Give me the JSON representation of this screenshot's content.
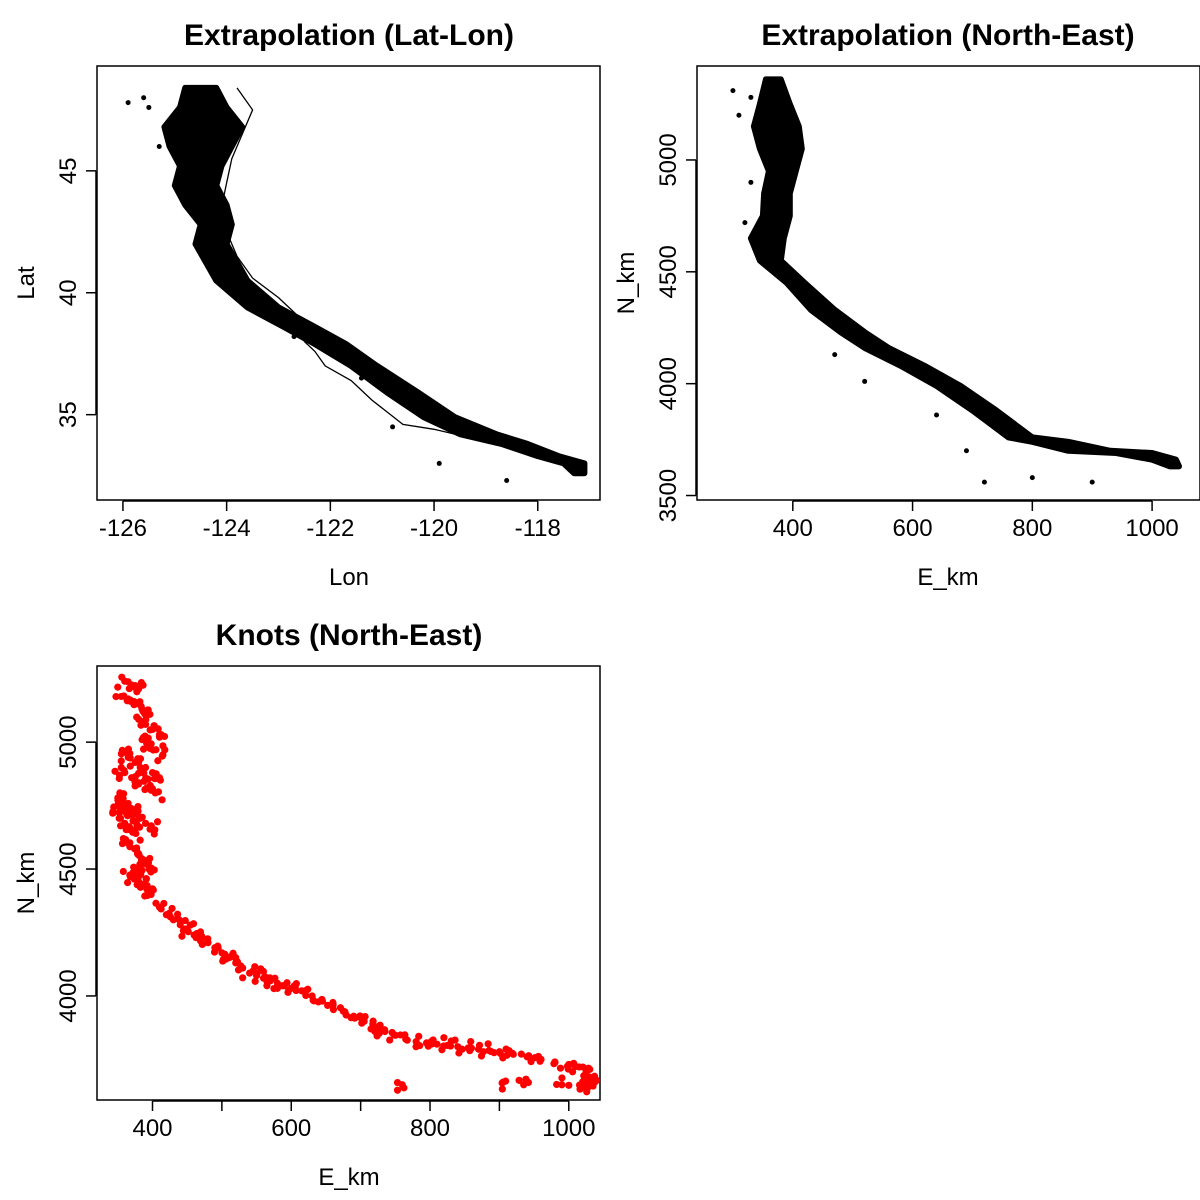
{
  "colors": {
    "extrapolation": "#000000",
    "knots": "#ff0000",
    "coastline": "#000000",
    "frame": "#000000"
  },
  "chart_data": [
    {
      "type": "scatter",
      "title": "Extrapolation (Lat-Lon)",
      "xlabel": "Lon",
      "ylabel": "Lat",
      "xlim": [
        -126.5,
        -116.8
      ],
      "ylim": [
        31.5,
        49.3
      ],
      "xticks": [
        -126,
        -124,
        -122,
        -120,
        -118
      ],
      "xtick_labels": [
        "-126",
        "-124",
        "-122",
        "-120",
        "-118"
      ],
      "yticks": [
        35,
        40,
        45
      ],
      "ytick_labels": [
        "35",
        "40",
        "45"
      ],
      "grid": false,
      "series": [
        {
          "color": "#000000",
          "style": "filled-region",
          "region_lon_west": [
            -124.8,
            -124.9,
            -125.2,
            -125.1,
            -124.9,
            -125.0,
            -124.8,
            -124.5,
            -124.6,
            -124.2,
            -123.6,
            -122.9,
            -122.3,
            -121.6,
            -120.9,
            -120.2,
            -119.5,
            -118.7,
            -118.0,
            -117.5,
            -117.3
          ],
          "region_lon_east": [
            -124.2,
            -124.0,
            -123.7,
            -123.9,
            -124.1,
            -124.2,
            -124.0,
            -123.9,
            -124.0,
            -123.6,
            -123.0,
            -122.3,
            -121.7,
            -121.1,
            -120.3,
            -119.6,
            -118.8,
            -118.2,
            -117.6,
            -117.1,
            -117.1
          ],
          "region_lat": [
            48.4,
            47.6,
            46.8,
            46.0,
            45.2,
            44.4,
            43.6,
            42.8,
            42.0,
            40.5,
            39.4,
            38.6,
            37.9,
            37.0,
            35.9,
            34.9,
            34.2,
            33.8,
            33.3,
            33.0,
            32.6
          ],
          "specks_lon": [
            -125.6,
            -125.9,
            -125.5,
            -125.1,
            -125.3,
            -124.4,
            -124.9,
            -123.0,
            -122.7,
            -121.4,
            -120.8,
            -119.9,
            -118.6
          ],
          "specks_lat": [
            48.0,
            47.8,
            47.6,
            46.8,
            46.0,
            45.0,
            44.0,
            39.0,
            38.2,
            36.5,
            34.5,
            33.0,
            32.3
          ]
        },
        {
          "color": "#000000",
          "style": "line",
          "name": "",
          "lon": [
            -123.8,
            -123.5,
            -123.7,
            -123.9,
            -124.0,
            -124.1,
            -124.0,
            -123.8,
            -123.5,
            -123.0,
            -122.6,
            -122.5,
            -122.3,
            -122.1,
            -121.6,
            -121.2,
            -120.6,
            -120.0,
            -119.2,
            -118.4,
            -117.6,
            -117.1
          ],
          "lat": [
            48.4,
            47.5,
            46.5,
            45.5,
            44.5,
            43.5,
            42.5,
            41.5,
            40.6,
            39.8,
            39.0,
            38.0,
            37.6,
            37.0,
            36.4,
            35.6,
            34.6,
            34.4,
            34.0,
            33.7,
            33.3,
            32.6
          ]
        }
      ]
    },
    {
      "type": "scatter",
      "title": "Extrapolation (North-East)",
      "xlabel": "E_km",
      "ylabel": "N_km",
      "xlim": [
        240,
        1080
      ],
      "ylim": [
        3480,
        5420
      ],
      "xticks": [
        400,
        600,
        800,
        1000
      ],
      "xtick_labels": [
        "400",
        "600",
        "800",
        "1000"
      ],
      "yticks": [
        3500,
        4000,
        4500,
        5000
      ],
      "ytick_labels": [
        "3500",
        "4000",
        "4500",
        "5000"
      ],
      "grid": false,
      "series": [
        {
          "color": "#000000",
          "style": "filled-region",
          "E_west": [
            355,
            345,
            335,
            345,
            360,
            352,
            350,
            330,
            345,
            390,
            430,
            480,
            520,
            580,
            640,
            700,
            760,
            800,
            860,
            940,
            1000,
            1030
          ],
          "E_east": [
            380,
            395,
            410,
            415,
            405,
            395,
            395,
            385,
            380,
            420,
            470,
            520,
            560,
            620,
            680,
            740,
            800,
            860,
            930,
            1000,
            1040,
            1045
          ],
          "N": [
            5360,
            5250,
            5150,
            5050,
            4950,
            4850,
            4750,
            4650,
            4550,
            4450,
            4330,
            4230,
            4160,
            4080,
            3990,
            3880,
            3760,
            3740,
            3700,
            3690,
            3660,
            3630
          ],
          "specks_E": [
            300,
            330,
            310,
            350,
            330,
            320,
            340,
            470,
            520,
            640,
            690,
            720,
            800,
            900
          ],
          "specks_N": [
            5310,
            5280,
            5200,
            5100,
            4900,
            4720,
            4600,
            4130,
            4010,
            3860,
            3700,
            3560,
            3580,
            3560
          ]
        }
      ]
    },
    {
      "type": "scatter",
      "title": "Knots (North-East)",
      "xlabel": "E_km",
      "ylabel": "N_km",
      "xlim": [
        320,
        1045
      ],
      "ylim": [
        3590,
        5300
      ],
      "xticks": [
        400,
        600,
        800,
        1000
      ],
      "xtick_labels": [
        "400",
        "600",
        "800",
        "1000"
      ],
      "xminor_ticks": [
        500,
        700,
        900
      ],
      "yticks": [
        4000,
        4500,
        5000
      ],
      "ytick_labels": [
        "4000",
        "4500",
        "5000"
      ],
      "grid": false,
      "series": [
        {
          "color": "#ff0000",
          "style": "points",
          "E": [
            360,
            370,
            380,
            355,
            365,
            375,
            385,
            395,
            380,
            390,
            400,
            410,
            385,
            395,
            405,
            415,
            360,
            365,
            375,
            390,
            400,
            410,
            355,
            360,
            370,
            380,
            392,
            404,
            350,
            358,
            366,
            374,
            382,
            390,
            398,
            352,
            360,
            368,
            376,
            350,
            357,
            364,
            372,
            358,
            366,
            374,
            380,
            385,
            390,
            395,
            375,
            383,
            368,
            374,
            380,
            386,
            392,
            398,
            410,
            420,
            430,
            440,
            450,
            460,
            470,
            480,
            490,
            500,
            510,
            520,
            530,
            540,
            550,
            560,
            570,
            580,
            590,
            600,
            615,
            630,
            645,
            660,
            675,
            690,
            705,
            720,
            735,
            750,
            765,
            780,
            795,
            810,
            825,
            840,
            855,
            870,
            885,
            900,
            920,
            940,
            960,
            980,
            1000,
            1015,
            1025,
            1030,
            1028,
            1020,
            1035,
            715,
            760,
            905,
            935,
            990,
            1025
          ],
          "N": [
            5240,
            5225,
            5210,
            5180,
            5170,
            5150,
            5130,
            5110,
            5090,
            5070,
            5050,
            5030,
            5010,
            4990,
            4970,
            4950,
            4960,
            4940,
            4920,
            4900,
            4880,
            4860,
            4900,
            4880,
            4860,
            4840,
            4820,
            4800,
            4780,
            4760,
            4740,
            4720,
            4700,
            4680,
            4660,
            4700,
            4680,
            4660,
            4640,
            4750,
            4730,
            4710,
            4690,
            4620,
            4600,
            4580,
            4560,
            4540,
            4520,
            4500,
            4490,
            4480,
            4470,
            4460,
            4450,
            4440,
            4420,
            4400,
            4350,
            4320,
            4300,
            4280,
            4260,
            4240,
            4220,
            4210,
            4190,
            4170,
            4150,
            4130,
            4110,
            4090,
            4080,
            4070,
            4060,
            4050,
            4040,
            4030,
            4020,
            4000,
            3980,
            3960,
            3940,
            3920,
            3900,
            3880,
            3860,
            3845,
            3830,
            3820,
            3815,
            3810,
            3805,
            3800,
            3795,
            3790,
            3785,
            3780,
            3770,
            3760,
            3750,
            3740,
            3730,
            3720,
            3700,
            3680,
            3660,
            3650,
            3645,
            3870,
            3650,
            3660,
            3650,
            3650,
            3640
          ]
        }
      ]
    }
  ]
}
